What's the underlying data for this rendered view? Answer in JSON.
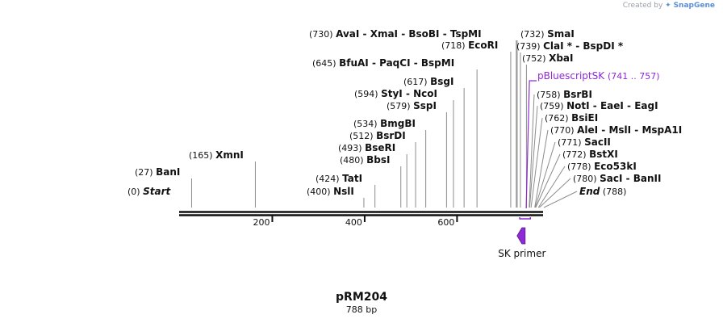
{
  "watermark": {
    "prefix": "Created by",
    "brand": "SnapGene"
  },
  "plasmid": {
    "name": "pRM204",
    "length_label": "788 bp",
    "length_bp": 788
  },
  "colors": {
    "sequence": "#111111",
    "feature": "#8e2ad6",
    "site_line": "#8c8c8c",
    "watermark": "#9aa0a6"
  },
  "ruler": {
    "ticks": [
      200,
      400,
      600
    ]
  },
  "sites": [
    {
      "id": "start",
      "pos": 0,
      "pos_label": "(0)",
      "names": [
        "Start"
      ],
      "italic": true
    },
    {
      "id": "bani",
      "pos": 27,
      "pos_label": "(27)",
      "names": [
        "BanI"
      ]
    },
    {
      "id": "xmni",
      "pos": 165,
      "pos_label": "(165)",
      "names": [
        "XmnI"
      ]
    },
    {
      "id": "nsli",
      "pos": 400,
      "pos_label": "(400)",
      "names": [
        "NslI"
      ]
    },
    {
      "id": "tati",
      "pos": 424,
      "pos_label": "(424)",
      "names": [
        "TatI"
      ]
    },
    {
      "id": "bbsi",
      "pos": 480,
      "pos_label": "(480)",
      "names": [
        "BbsI"
      ]
    },
    {
      "id": "bseri",
      "pos": 493,
      "pos_label": "(493)",
      "names": [
        "BseRI"
      ]
    },
    {
      "id": "bsrdi",
      "pos": 512,
      "pos_label": "(512)",
      "names": [
        "BsrDI"
      ]
    },
    {
      "id": "bmgbi",
      "pos": 534,
      "pos_label": "(534)",
      "names": [
        "BmgBI"
      ]
    },
    {
      "id": "sspi",
      "pos": 579,
      "pos_label": "(579)",
      "names": [
        "SspI"
      ]
    },
    {
      "id": "styi",
      "pos": 594,
      "pos_label": "(594)",
      "names": [
        "StyI",
        "NcoI"
      ]
    },
    {
      "id": "bsgi",
      "pos": 617,
      "pos_label": "(617)",
      "names": [
        "BsgI"
      ]
    },
    {
      "id": "bfuai",
      "pos": 645,
      "pos_label": "(645)",
      "names": [
        "BfuAI",
        "PaqCI",
        "BspMI"
      ]
    },
    {
      "id": "ecori",
      "pos": 718,
      "pos_label": "(718)",
      "names": [
        "EcoRI"
      ]
    },
    {
      "id": "avai",
      "pos": 730,
      "pos_label": "(730)",
      "names": [
        "AvaI",
        "XmaI",
        "BsoBI",
        "TspMI"
      ]
    },
    {
      "id": "smai",
      "pos": 732,
      "pos_label": "(732)",
      "names": [
        "SmaI"
      ]
    },
    {
      "id": "clai",
      "pos": 739,
      "pos_label": "(739)",
      "names": [
        "ClaI *",
        "BspDI *"
      ]
    },
    {
      "id": "xbai",
      "pos": 752,
      "pos_label": "(752)",
      "names": [
        "XbaI"
      ]
    },
    {
      "id": "bsrbi",
      "pos": 758,
      "pos_label": "(758)",
      "names": [
        "BsrBI"
      ]
    },
    {
      "id": "noti",
      "pos": 759,
      "pos_label": "(759)",
      "names": [
        "NotI",
        "EaeI",
        "EagI"
      ]
    },
    {
      "id": "bsiei",
      "pos": 762,
      "pos_label": "(762)",
      "names": [
        "BsiEI"
      ]
    },
    {
      "id": "alei",
      "pos": 770,
      "pos_label": "(770)",
      "names": [
        "AleI",
        "MslI",
        "MspA1I"
      ]
    },
    {
      "id": "sacii",
      "pos": 771,
      "pos_label": "(771)",
      "names": [
        "SacII"
      ]
    },
    {
      "id": "bstxi",
      "pos": 772,
      "pos_label": "(772)",
      "names": [
        "BstXI"
      ]
    },
    {
      "id": "eco53ki",
      "pos": 778,
      "pos_label": "(778)",
      "names": [
        "Eco53kI"
      ]
    },
    {
      "id": "saci",
      "pos": 780,
      "pos_label": "(780)",
      "names": [
        "SacI",
        "BanII"
      ]
    },
    {
      "id": "end",
      "pos": 788,
      "pos_label": "(788)",
      "names": [
        "End"
      ],
      "italic": true
    }
  ],
  "features": [
    {
      "id": "pbluescriptsk",
      "name": "pBluescriptSK",
      "range_label": "(741 .. 757)",
      "start": 741,
      "end": 757
    }
  ],
  "primers": [
    {
      "id": "sk-primer",
      "name": "SK primer",
      "pos": 744
    }
  ]
}
